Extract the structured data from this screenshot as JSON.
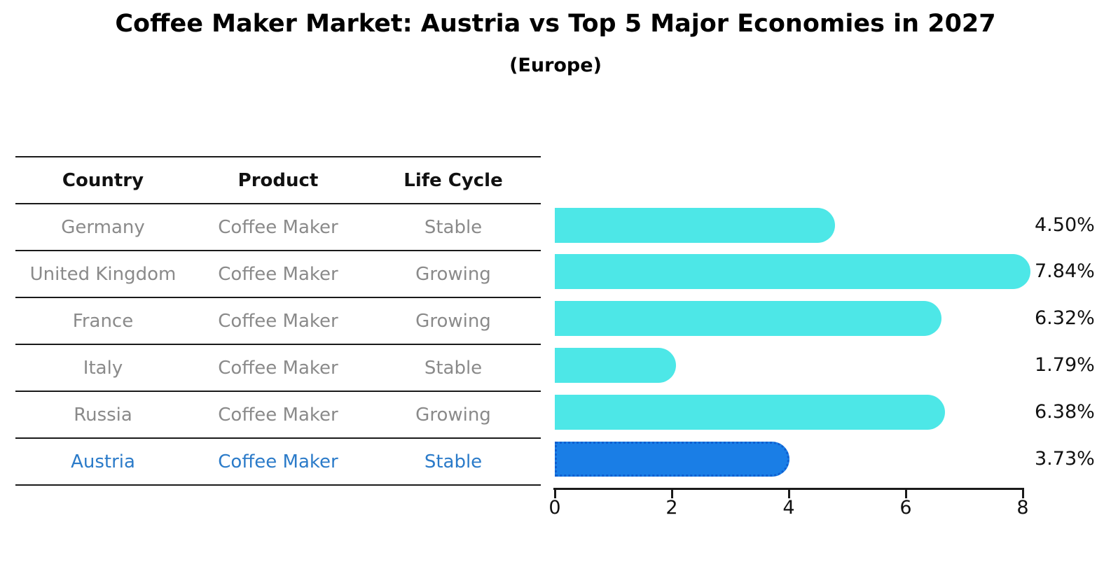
{
  "header": {
    "title": "Coffee Maker Market: Austria vs Top 5 Major Economies in 2027",
    "subtitle": "(Europe)"
  },
  "table": {
    "columns": [
      "Country",
      "Product",
      "Life Cycle"
    ],
    "rows": [
      {
        "country": "Germany",
        "product": "Coffee Maker",
        "life_cycle": "Stable",
        "highlighted": false
      },
      {
        "country": "United Kingdom",
        "product": "Coffee Maker",
        "life_cycle": "Growing",
        "highlighted": false
      },
      {
        "country": "France",
        "product": "Coffee Maker",
        "life_cycle": "Growing",
        "highlighted": false
      },
      {
        "country": "Italy",
        "product": "Coffee Maker",
        "life_cycle": "Stable",
        "highlighted": false
      },
      {
        "country": "Russia",
        "product": "Coffee Maker",
        "life_cycle": "Growing",
        "highlighted": false
      },
      {
        "country": "Austria",
        "product": "Coffee Maker",
        "life_cycle": "Stable",
        "highlighted": true
      }
    ]
  },
  "chart_data": {
    "type": "bar",
    "orientation": "horizontal",
    "title": "Coffee Maker Market: Austria vs Top 5 Major Economies in 2027",
    "subtitle": "(Europe)",
    "categories": [
      "Germany",
      "United Kingdom",
      "France",
      "Italy",
      "Russia",
      "Austria"
    ],
    "values": [
      4.5,
      7.84,
      6.32,
      1.79,
      6.38,
      3.73
    ],
    "value_labels": [
      "4.50%",
      "7.84%",
      "6.32%",
      "1.79%",
      "6.38%",
      "3.73%"
    ],
    "xlim": [
      0,
      8
    ],
    "xticks": [
      "0",
      "2",
      "4",
      "6",
      "8"
    ],
    "grid": false,
    "legend": "none",
    "bar_color": "#4de7e7",
    "highlight_color": "#1a7ee6",
    "highlight_index": 5,
    "highlight_text_color": "#2b7bc9"
  }
}
